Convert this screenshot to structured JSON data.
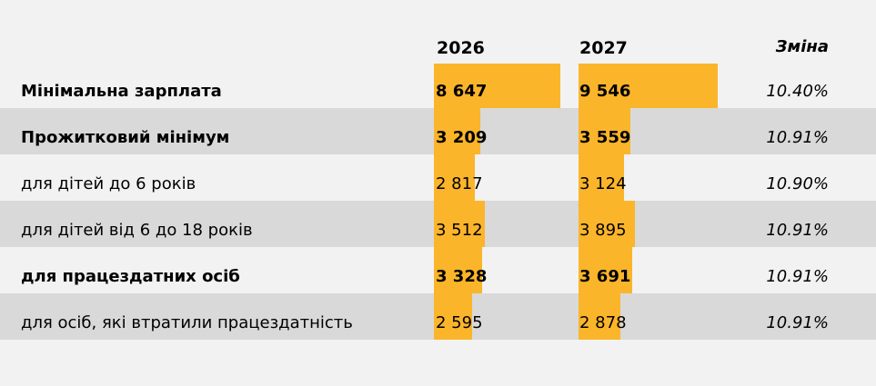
{
  "chart_data": {
    "type": "table",
    "max_value": 9546,
    "columns": [
      "2026",
      "2027",
      "Зміна"
    ],
    "rows": [
      {
        "label": "Мінімальна зарплата",
        "bold": true,
        "shaded": false,
        "v2026": 8647,
        "v2027": 9546,
        "t2026": "8 647",
        "t2027": "9 546",
        "change": "10.40%"
      },
      {
        "label": "Прожитковий мінімум",
        "bold": true,
        "shaded": true,
        "v2026": 3209,
        "v2027": 3559,
        "t2026": "3 209",
        "t2027": "3 559",
        "change": "10.91%"
      },
      {
        "label": "для дітей до 6 років",
        "bold": false,
        "shaded": false,
        "v2026": 2817,
        "v2027": 3124,
        "t2026": "2 817",
        "t2027": "3 124",
        "change": "10.90%"
      },
      {
        "label": "для дітей від 6 до 18 років",
        "bold": false,
        "shaded": true,
        "v2026": 3512,
        "v2027": 3895,
        "t2026": "3 512",
        "t2027": "3 895",
        "change": "10.91%"
      },
      {
        "label": "для працездатних осіб",
        "bold": true,
        "shaded": false,
        "v2026": 3328,
        "v2027": 3691,
        "t2026": "3 328",
        "t2027": "3 691",
        "change": "10.91%"
      },
      {
        "label": "для осіб, які втратили працездатність",
        "bold": false,
        "shaded": true,
        "v2026": 2595,
        "v2027": 2878,
        "t2026": "2 595",
        "t2027": "2 878",
        "change": "10.91%"
      }
    ],
    "bar_color": "#fbb52a",
    "shade_color": "#d9d9d9"
  }
}
